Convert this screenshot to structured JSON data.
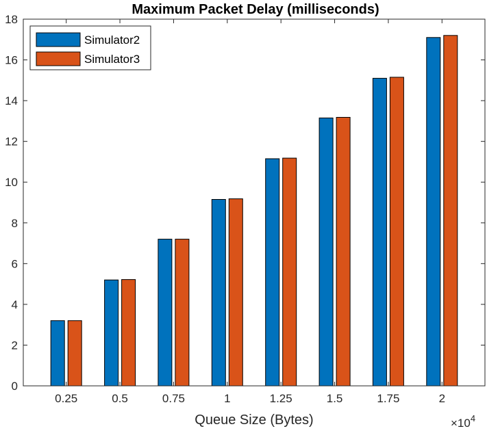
{
  "chart_data": {
    "type": "bar",
    "title": "Maximum Packet Delay (milliseconds)",
    "xlabel": "Queue Size (Bytes)",
    "ylabel": "",
    "x_exponent_base": "×10",
    "x_exponent_power": "4",
    "categories": [
      "0.25",
      "0.5",
      "0.75",
      "1",
      "1.25",
      "1.5",
      "1.75",
      "2"
    ],
    "series": [
      {
        "name": "Simulator2",
        "color": "#0072BD",
        "values": [
          3.2,
          5.2,
          7.2,
          9.15,
          11.15,
          13.15,
          15.1,
          17.1
        ]
      },
      {
        "name": "Simulator3",
        "color": "#D95319",
        "values": [
          3.2,
          5.22,
          7.2,
          9.18,
          11.18,
          13.18,
          15.15,
          17.2
        ]
      }
    ],
    "ylim": [
      0,
      18
    ],
    "yticks": [
      0,
      2,
      4,
      6,
      8,
      10,
      12,
      14,
      16,
      18
    ],
    "legend_position": "top-left",
    "grid": false
  }
}
